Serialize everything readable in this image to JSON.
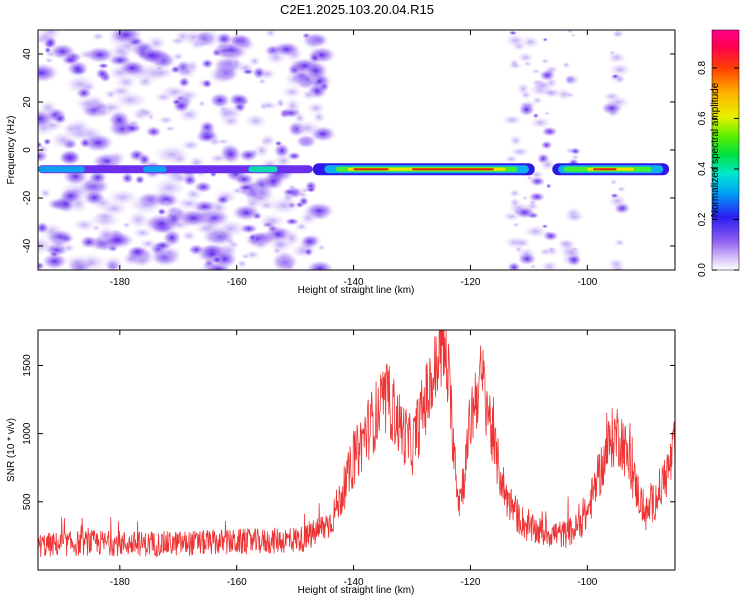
{
  "title": "C2E1.2025.103.20.04.R15",
  "chart_data": [
    {
      "type": "heatmap",
      "xlabel": "Height of straight line (km)",
      "ylabel": "Frequency (Hz)",
      "xlim": [
        -194,
        -85
      ],
      "ylim": [
        -50,
        50
      ],
      "x_ticks": [
        -180,
        -160,
        -140,
        -120,
        -100
      ],
      "y_ticks": [
        -40,
        -20,
        0,
        20,
        40
      ],
      "colorbar": {
        "label": "Normalized spectral amplitude",
        "range": [
          0,
          0.95
        ],
        "ticks": [
          0.0,
          0.2,
          0.4,
          0.6,
          0.8
        ]
      },
      "signal_band": {
        "frequency_hz": -8,
        "strong_x_range": [
          -147,
          -86
        ],
        "peak_amplitude": 0.9
      },
      "noise_regions": [
        [
          -194,
          -145
        ],
        [
          -113,
          -106
        ],
        [
          -104,
          -102
        ],
        [
          -96,
          -94
        ]
      ]
    },
    {
      "type": "line",
      "xlabel": "Height of straight line (km)",
      "ylabel": "SNR (10 * v/v)",
      "xlim": [
        -194,
        -85
      ],
      "ylim": [
        0,
        1760
      ],
      "x_ticks": [
        -180,
        -160,
        -140,
        -120,
        -100
      ],
      "y_ticks": [
        500,
        1000,
        1500
      ],
      "color": "#ee3333",
      "series": [
        {
          "x": [
            -194,
            -185,
            -175,
            -165,
            -155,
            -148,
            -144,
            -142,
            -140,
            -138,
            -136,
            -134,
            -132,
            -130,
            -128,
            -126,
            -125,
            -124,
            -123,
            -122,
            -121,
            -120,
            -119,
            -118,
            -117,
            -116,
            -114,
            -112,
            -110,
            -108,
            -106,
            -104,
            -102,
            -100,
            -98,
            -96,
            -95,
            -94,
            -92,
            -90,
            -88,
            -86,
            -85
          ],
          "values": [
            180,
            200,
            190,
            200,
            210,
            230,
            350,
            550,
            800,
            1000,
            1150,
            1250,
            1050,
            900,
            1200,
            1450,
            1650,
            1500,
            1000,
            500,
            700,
            1100,
            1300,
            1400,
            1200,
            900,
            550,
            400,
            300,
            280,
            270,
            260,
            300,
            420,
            700,
            950,
            1000,
            950,
            650,
            400,
            550,
            750,
            900
          ]
        }
      ]
    }
  ]
}
